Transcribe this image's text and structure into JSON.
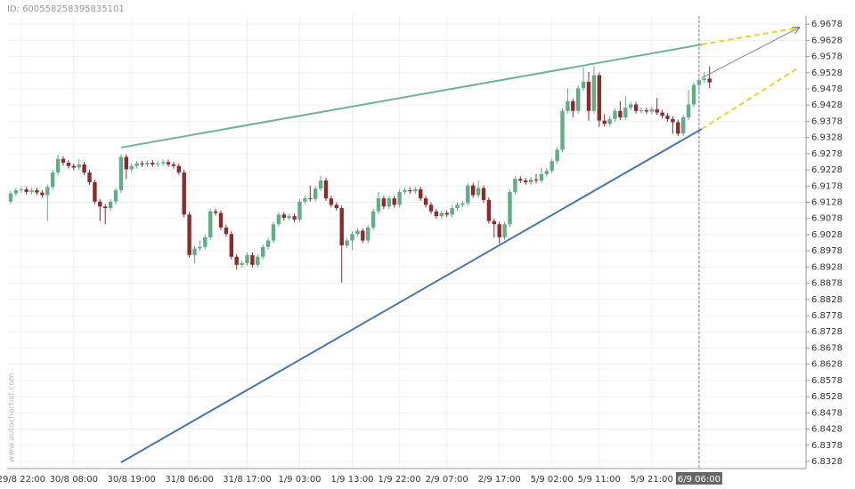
{
  "chart_data": {
    "type": "candlestick",
    "id_label": "ID: 600558258395835101",
    "watermark": "www.autochartist.com",
    "categories": [
      null,
      null,
      "29/8 22:00",
      null,
      null,
      null,
      null,
      null,
      null,
      null,
      null,
      null,
      "30/8 08:00",
      null,
      null,
      null,
      null,
      null,
      null,
      null,
      null,
      null,
      null,
      "30/8 19:00",
      null,
      null,
      null,
      null,
      null,
      null,
      null,
      null,
      null,
      null,
      "31/8 06:00",
      null,
      null,
      null,
      null,
      null,
      null,
      null,
      null,
      null,
      null,
      "31/8 17:00",
      null,
      null,
      null,
      null,
      null,
      null,
      null,
      null,
      null,
      "1/9 03:00",
      null,
      null,
      null,
      null,
      null,
      null,
      null,
      null,
      null,
      "1/9 13:00",
      null,
      null,
      null,
      null,
      null,
      null,
      null,
      null,
      "1/9 22:00",
      null,
      null,
      null,
      null,
      null,
      null,
      null,
      null,
      "2/9 07:00",
      null,
      null,
      null,
      null,
      null,
      null,
      null,
      null,
      null,
      "2/9 17:00",
      null,
      null,
      null,
      null,
      null,
      null,
      null,
      null,
      null,
      "5/9 02:00",
      null,
      null,
      null,
      null,
      null,
      null,
      null,
      null,
      "5/9 11:00",
      null,
      null,
      null,
      null,
      null,
      null,
      null,
      null,
      null,
      "5/9 21:00",
      null,
      null,
      null,
      null,
      null,
      null,
      null,
      null,
      "6/9 06:00",
      null,
      null
    ],
    "crosshair_index": 131,
    "up_color": "#5fae86",
    "down_color": "#8e2a2c",
    "open": [
      6.913,
      6.9155,
      6.9165,
      6.9168,
      6.916,
      6.9165,
      6.9158,
      6.915,
      6.9175,
      6.922,
      6.9262,
      6.925,
      6.924,
      6.9235,
      6.9245,
      6.922,
      6.919,
      6.913,
      6.9115,
      6.911,
      6.913,
      6.9165,
      6.9268,
      6.923,
      6.924,
      6.9248,
      6.9245,
      6.925,
      6.9245,
      6.9248,
      6.9252,
      6.9245,
      6.924,
      6.922,
      6.909,
      6.8965,
      6.8985,
      6.899,
      6.902,
      6.91,
      6.9095,
      6.905,
      6.903,
      6.896,
      6.8935,
      6.894,
      6.8965,
      6.8935,
      6.896,
      6.899,
      6.901,
      6.906,
      6.909,
      6.908,
      6.9085,
      6.9075,
      6.913,
      6.914,
      6.9138,
      6.917,
      6.9195,
      6.914,
      6.912,
      6.911,
      6.8995,
      6.901,
      6.903,
      6.904,
      6.901,
      6.905,
      6.91,
      6.914,
      6.9115,
      6.914,
      6.912,
      6.916,
      6.9165,
      6.9162,
      6.9168,
      6.914,
      6.912,
      6.91,
      6.9085,
      6.9095,
      6.909,
      6.911,
      6.912,
      6.9125,
      6.918,
      6.915,
      6.9172,
      6.9135,
      6.907,
      6.906,
      6.902,
      6.906,
      6.916,
      6.92,
      6.9195,
      6.919,
      6.9198,
      6.9195,
      6.9215,
      6.9225,
      6.9255,
      6.929,
      6.941,
      6.944,
      6.941,
      6.948,
      6.95,
      6.941,
      6.952,
      6.938,
      6.937,
      6.9385,
      6.941,
      6.939,
      6.942,
      6.943,
      6.941,
      6.9412,
      6.9408,
      6.9415,
      6.9405,
      6.9395,
      6.9385,
      6.9375,
      6.934,
      6.939,
      6.943,
      6.949,
      6.9505,
      6.951
    ],
    "high": [
      6.9163,
      6.9173,
      6.9176,
      6.9176,
      6.9173,
      6.9173,
      6.9166,
      6.9183,
      6.9228,
      6.9275,
      6.927,
      6.9258,
      6.9248,
      6.9262,
      6.9253,
      6.9228,
      6.9198,
      6.9138,
      6.9123,
      6.9138,
      6.9173,
      6.9276,
      6.9276,
      6.9248,
      6.9256,
      6.9256,
      6.9258,
      6.9258,
      6.9256,
      6.926,
      6.926,
      6.9253,
      6.9248,
      6.9228,
      6.9098,
      6.8993,
      6.901,
      6.9028,
      6.9108,
      6.9108,
      6.9103,
      6.9058,
      6.9038,
      6.8968,
      6.8948,
      6.8973,
      6.8973,
      6.8968,
      6.8998,
      6.9018,
      6.9068,
      6.9098,
      6.9098,
      6.9093,
      6.9093,
      6.9138,
      6.9148,
      6.918,
      6.9178,
      6.921,
      6.9203,
      6.9148,
      6.9128,
      6.9118,
      6.9018,
      6.9038,
      6.9048,
      6.9048,
      6.9058,
      6.9108,
      6.916,
      6.9148,
      6.9148,
      6.9148,
      6.9168,
      6.9173,
      6.9173,
      6.9176,
      6.9176,
      6.9148,
      6.9128,
      6.9108,
      6.9103,
      6.9103,
      6.9118,
      6.9128,
      6.9133,
      6.9188,
      6.9188,
      6.9195,
      6.918,
      6.9143,
      6.9078,
      6.9068,
      6.9068,
      6.9168,
      6.9208,
      6.9208,
      6.9203,
      6.9206,
      6.9215,
      6.9235,
      6.9233,
      6.9263,
      6.9298,
      6.9418,
      6.948,
      6.9448,
      6.9488,
      6.9545,
      6.953,
      6.955,
      6.9528,
      6.94,
      6.9393,
      6.9418,
      6.944,
      6.9455,
      6.9438,
      6.9438,
      6.942,
      6.942,
      6.9423,
      6.945,
      6.9413,
      6.9403,
      6.9393,
      6.9383,
      6.9398,
      6.9475,
      6.9498,
      6.9513,
      6.953,
      6.9548
    ],
    "low": [
      6.9122,
      6.9147,
      6.9157,
      6.9152,
      6.9152,
      6.915,
      6.9142,
      6.907,
      6.9167,
      6.9212,
      6.9242,
      6.9232,
      6.9227,
      6.9227,
      6.9212,
      6.9182,
      6.9122,
      6.907,
      6.906,
      6.9102,
      6.9122,
      6.9157,
      6.92,
      6.9222,
      6.9232,
      6.9237,
      6.9237,
      6.9237,
      6.9237,
      6.924,
      6.9237,
      6.9232,
      6.9212,
      6.9082,
      6.8957,
      6.894,
      6.8977,
      6.8982,
      6.9012,
      6.9087,
      6.9042,
      6.9022,
      6.8952,
      6.892,
      6.8927,
      6.8932,
      6.8927,
      6.8927,
      6.8952,
      6.8982,
      6.9002,
      6.9052,
      6.9072,
      6.9072,
      6.9067,
      6.9067,
      6.9122,
      6.913,
      6.913,
      6.9162,
      6.9132,
      6.9112,
      6.9102,
      6.888,
      6.8987,
      6.898,
      6.9022,
      6.9002,
      6.9002,
      6.9042,
      6.9092,
      6.9107,
      6.9107,
      6.9112,
      6.9112,
      6.9152,
      6.9154,
      6.9154,
      6.9132,
      6.9112,
      6.9092,
      6.9077,
      6.9077,
      6.9082,
      6.9082,
      6.9102,
      6.9112,
      6.9117,
      6.9142,
      6.9142,
      6.9127,
      6.9062,
      6.902,
      6.9,
      6.9012,
      6.9052,
      6.9152,
      6.9187,
      6.9182,
      6.9182,
      6.9187,
      6.9187,
      6.9207,
      6.9217,
      6.9247,
      6.9282,
      6.9402,
      6.939,
      6.9402,
      6.9472,
      6.938,
      6.9402,
      6.936,
      6.9362,
      6.9362,
      6.9377,
      6.9382,
      6.9382,
      6.9412,
      6.9402,
      6.9402,
      6.94,
      6.94,
      6.9397,
      6.9387,
      6.9377,
      6.934,
      6.9332,
      6.9332,
      6.9382,
      6.9422,
      6.947,
      6.9497,
      6.948
    ],
    "close": [
      6.9155,
      6.9165,
      6.9168,
      6.916,
      6.9165,
      6.9158,
      6.915,
      6.9175,
      6.922,
      6.9262,
      6.925,
      6.924,
      6.9235,
      6.9245,
      6.922,
      6.919,
      6.913,
      6.9115,
      6.911,
      6.913,
      6.9165,
      6.9268,
      6.923,
      6.924,
      6.9248,
      6.9245,
      6.925,
      6.9245,
      6.9248,
      6.9252,
      6.9245,
      6.924,
      6.922,
      6.909,
      6.8965,
      6.8985,
      6.899,
      6.902,
      6.91,
      6.9095,
      6.905,
      6.903,
      6.896,
      6.8935,
      6.894,
      6.8965,
      6.8935,
      6.896,
      6.899,
      6.901,
      6.906,
      6.909,
      6.908,
      6.9085,
      6.9075,
      6.913,
      6.914,
      6.9138,
      6.917,
      6.9195,
      6.914,
      6.912,
      6.911,
      6.8995,
      6.901,
      6.903,
      6.904,
      6.901,
      6.905,
      6.91,
      6.914,
      6.9115,
      6.914,
      6.912,
      6.916,
      6.9165,
      6.9162,
      6.9168,
      6.914,
      6.912,
      6.91,
      6.9085,
      6.9095,
      6.909,
      6.911,
      6.912,
      6.9125,
      6.918,
      6.915,
      6.9172,
      6.9135,
      6.907,
      6.906,
      6.902,
      6.906,
      6.916,
      6.92,
      6.9195,
      6.919,
      6.9198,
      6.9195,
      6.9215,
      6.9225,
      6.9255,
      6.929,
      6.941,
      6.944,
      6.941,
      6.948,
      6.95,
      6.941,
      6.952,
      6.938,
      6.937,
      6.9385,
      6.941,
      6.939,
      6.942,
      6.943,
      6.941,
      6.9412,
      6.9408,
      6.9415,
      6.9405,
      6.9395,
      6.9385,
      6.9375,
      6.934,
      6.939,
      6.943,
      6.949,
      6.9505,
      6.951,
      6.9498
    ],
    "lines": [
      {
        "color": "#6db58f",
        "points": [
          [
            21,
            6.9297
          ],
          [
            131.5,
            6.9615
          ]
        ]
      },
      {
        "color": "#4a76b0",
        "points": [
          [
            21,
            6.8325
          ],
          [
            131.5,
            6.9354
          ]
        ]
      },
      {
        "color": "#f2cf2a",
        "dashed": true,
        "points": [
          [
            131.5,
            6.9615
          ],
          [
            150,
            6.9667
          ]
        ]
      },
      {
        "color": "#f2cf2a",
        "dashed": true,
        "points": [
          [
            131.5,
            6.9354
          ],
          [
            150,
            6.9544
          ]
        ]
      },
      {
        "color": "#888888",
        "arrow": true,
        "points": [
          [
            131.4,
            6.9511
          ],
          [
            150,
            6.9667
          ]
        ]
      }
    ],
    "ylim": [
      6.8306,
      6.9703
    ],
    "yticks": [
      6.8328,
      6.8378,
      6.8428,
      6.8478,
      6.8528,
      6.8578,
      6.8628,
      6.8678,
      6.8728,
      6.8778,
      6.8828,
      6.8878,
      6.8928,
      6.8978,
      6.9028,
      6.9078,
      6.9128,
      6.9178,
      6.9228,
      6.9278,
      6.9328,
      6.9378,
      6.9428,
      6.9478,
      6.9528,
      6.9578,
      6.9628,
      6.9678
    ],
    "grid": true
  }
}
